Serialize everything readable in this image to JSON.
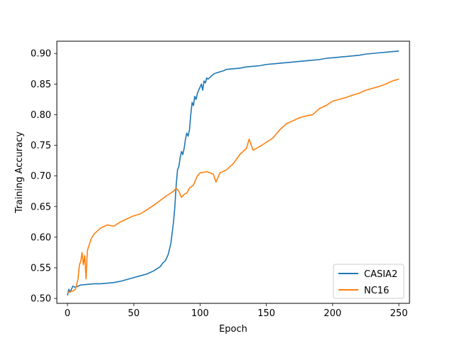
{
  "chart_data": {
    "type": "line",
    "title": "",
    "xlabel": "Epoch",
    "ylabel": "Training Accuracy",
    "xlim": [
      -8,
      258
    ],
    "ylim": [
      0.492,
      0.92
    ],
    "xticks": [
      0,
      50,
      100,
      150,
      200,
      250
    ],
    "xtick_labels": [
      "0",
      "50",
      "100",
      "150",
      "200",
      "250"
    ],
    "yticks": [
      0.5,
      0.55,
      0.6,
      0.65,
      0.7,
      0.75,
      0.8,
      0.85,
      0.9
    ],
    "ytick_labels": [
      "0.50",
      "0.55",
      "0.60",
      "0.65",
      "0.70",
      "0.75",
      "0.80",
      "0.85",
      "0.90"
    ],
    "grid": false,
    "legend_position": "lower-right",
    "series": [
      {
        "name": "CASIA2",
        "color": "#1f77b4",
        "x": [
          0,
          1,
          2,
          4,
          6,
          10,
          15,
          20,
          25,
          30,
          35,
          40,
          45,
          50,
          55,
          60,
          65,
          70,
          72,
          74,
          76,
          78,
          80,
          81,
          82,
          83,
          84,
          85,
          86,
          87,
          88,
          89,
          90,
          91,
          92,
          93,
          94,
          95,
          96,
          97,
          98,
          99,
          100,
          101,
          102,
          103,
          104,
          105,
          106,
          108,
          110,
          112,
          115,
          118,
          120,
          125,
          130,
          135,
          140,
          145,
          150,
          155,
          160,
          165,
          170,
          175,
          180,
          185,
          190,
          195,
          200,
          205,
          210,
          215,
          220,
          225,
          230,
          235,
          240,
          245,
          250
        ],
        "y": [
          0.505,
          0.515,
          0.51,
          0.52,
          0.518,
          0.522,
          0.523,
          0.524,
          0.524,
          0.525,
          0.526,
          0.528,
          0.531,
          0.534,
          0.537,
          0.54,
          0.545,
          0.552,
          0.558,
          0.562,
          0.572,
          0.59,
          0.625,
          0.65,
          0.685,
          0.71,
          0.715,
          0.73,
          0.74,
          0.735,
          0.745,
          0.76,
          0.77,
          0.765,
          0.775,
          0.8,
          0.82,
          0.815,
          0.83,
          0.825,
          0.835,
          0.84,
          0.845,
          0.85,
          0.84,
          0.855,
          0.852,
          0.86,
          0.858,
          0.862,
          0.866,
          0.868,
          0.87,
          0.872,
          0.874,
          0.875,
          0.876,
          0.878,
          0.879,
          0.88,
          0.882,
          0.883,
          0.884,
          0.885,
          0.886,
          0.887,
          0.888,
          0.889,
          0.89,
          0.892,
          0.893,
          0.894,
          0.895,
          0.896,
          0.897,
          0.899,
          0.9,
          0.901,
          0.902,
          0.903,
          0.904
        ]
      },
      {
        "name": "NC16",
        "color": "#ff7f0e",
        "x": [
          0,
          2,
          4,
          6,
          8,
          9,
          10,
          11,
          12,
          13,
          14,
          15,
          16,
          18,
          20,
          25,
          30,
          35,
          40,
          45,
          50,
          55,
          60,
          65,
          70,
          75,
          80,
          82,
          84,
          86,
          88,
          90,
          92,
          95,
          98,
          100,
          105,
          110,
          112,
          115,
          120,
          125,
          130,
          135,
          137,
          140,
          145,
          150,
          155,
          160,
          165,
          170,
          175,
          180,
          185,
          190,
          195,
          200,
          205,
          210,
          215,
          220,
          225,
          230,
          235,
          240,
          245,
          250
        ],
        "y": [
          0.51,
          0.511,
          0.512,
          0.515,
          0.532,
          0.555,
          0.56,
          0.575,
          0.555,
          0.57,
          0.532,
          0.578,
          0.585,
          0.598,
          0.605,
          0.615,
          0.62,
          0.618,
          0.625,
          0.63,
          0.635,
          0.638,
          0.645,
          0.652,
          0.66,
          0.668,
          0.675,
          0.68,
          0.675,
          0.665,
          0.67,
          0.672,
          0.68,
          0.685,
          0.7,
          0.705,
          0.707,
          0.703,
          0.69,
          0.705,
          0.71,
          0.72,
          0.735,
          0.745,
          0.76,
          0.742,
          0.748,
          0.755,
          0.762,
          0.775,
          0.785,
          0.79,
          0.795,
          0.798,
          0.8,
          0.81,
          0.815,
          0.822,
          0.825,
          0.828,
          0.832,
          0.835,
          0.84,
          0.843,
          0.846,
          0.85,
          0.855,
          0.858
        ]
      }
    ]
  }
}
